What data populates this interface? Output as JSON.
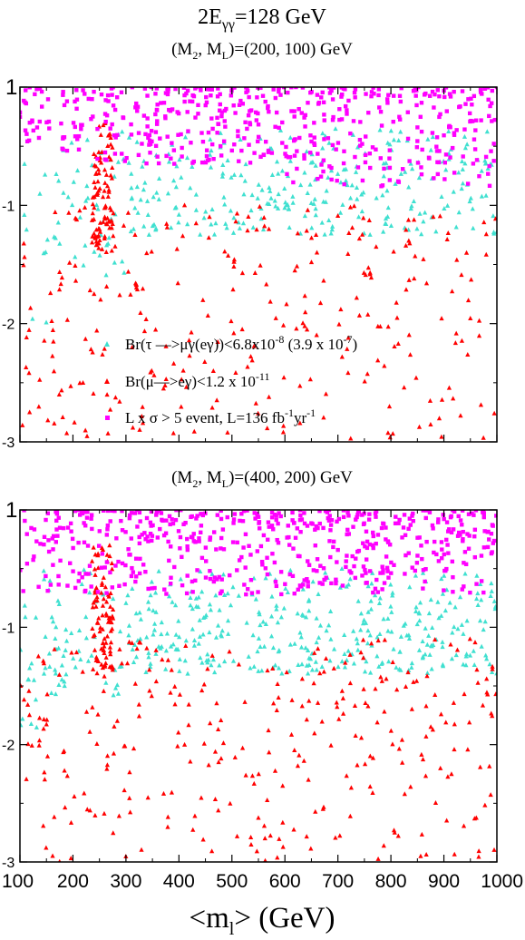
{
  "figure": {
    "title": {
      "main": "2E",
      "sub": "γγ",
      "rest": "=128 GeV"
    },
    "xlabel": {
      "pre": "<m",
      "sub": "l",
      "post": ">  (GeV)"
    }
  },
  "colors": {
    "cyan": "#40e0d0",
    "red": "#ff0000",
    "magenta": "#ff00ff"
  },
  "chart_data": [
    {
      "type": "scatter",
      "title": {
        "pre": "(M",
        "sub1": "2",
        "mid": ", M",
        "sub2": "L",
        "post": ")=(200, 100) GeV"
      },
      "xlim": [
        100,
        1000
      ],
      "ylim": [
        -3,
        0
      ],
      "xticks": [
        100,
        200,
        300,
        400,
        500,
        600,
        700,
        800,
        900,
        1000
      ],
      "yticks": [
        "1",
        "-1",
        "-2",
        "-3"
      ],
      "ytick_values": [
        0,
        -1,
        -2,
        -3
      ],
      "show_x_tick_labels": false,
      "legend": [
        {
          "color": "cyan",
          "parts": [
            {
              "t": "Br(τ —>μγ(eγ))<6.8x10"
            },
            {
              "t": "-8",
              "sup": true
            },
            {
              "t": " (3.9 x 10"
            },
            {
              "t": "-7",
              "sup": true
            },
            {
              "t": ")"
            }
          ]
        },
        {
          "color": "red",
          "parts": [
            {
              "t": "Br(μ—>eγ)<1.2 x 10"
            },
            {
              "t": "-11",
              "sup": true
            }
          ]
        },
        {
          "color": "magenta",
          "parts": [
            {
              "t": "L x σ > 5 event, L=136 fb"
            },
            {
              "t": "-1",
              "sup": true
            },
            {
              "t": "yr"
            },
            {
              "t": "-1",
              "sup": true
            }
          ]
        }
      ],
      "series": [
        {
          "color": "magenta",
          "region": "dense band from y=0 to about y=-0.6, thinning to about y=-0.9 near m=600-1000"
        },
        {
          "color": "cyan",
          "region": "scattered from y=-0.3 down to about -2.0 near m=100-150, rising to about -1.2 for m>300"
        },
        {
          "color": "red",
          "region": "sparse points filling y=-1.0 to -3.0 across all m, plus a dense narrow spike near m=250 reaching y=-0.3"
        }
      ]
    },
    {
      "type": "scatter",
      "title": {
        "pre": "(M",
        "sub1": "2",
        "mid": ", M",
        "sub2": "L",
        "post": ")=(400, 200) GeV"
      },
      "xlim": [
        100,
        1000
      ],
      "ylim": [
        -3,
        0
      ],
      "xticks": [
        100,
        200,
        300,
        400,
        500,
        600,
        700,
        800,
        900,
        1000
      ],
      "xticklabels": [
        "100",
        "200",
        "300",
        "400",
        "500",
        "600",
        "700",
        "800",
        "900",
        "1000"
      ],
      "yticks": [
        "1",
        "-1",
        "-2",
        "-3"
      ],
      "ytick_values": [
        0,
        -1,
        -2,
        -3
      ],
      "show_x_tick_labels": true,
      "series": [
        {
          "color": "magenta",
          "region": "dense band from y=0 to about y=-0.7 across all m"
        },
        {
          "color": "cyan",
          "region": "broad band from y=-0.5 to -1.4, extending to -1.9 near m=100"
        },
        {
          "color": "red",
          "region": "sparse points filling y=-1.1 to -3.0 across all m, plus a dense narrow spike near m=250 reaching y=-0.3"
        }
      ]
    }
  ]
}
